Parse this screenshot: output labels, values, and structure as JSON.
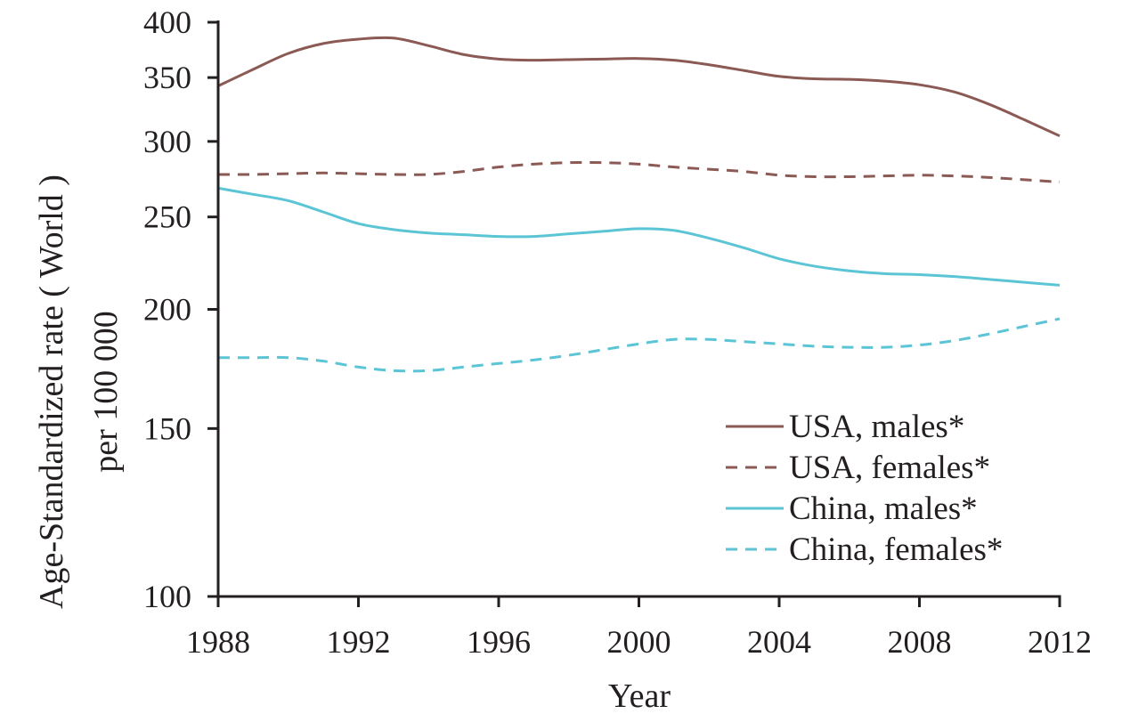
{
  "chart_data": {
    "type": "line",
    "xlabel": "Year",
    "ylabel": [
      "Age-Standardized rate ( World )",
      "per 100 000"
    ],
    "y_scale": "log",
    "xlim": [
      1988,
      2012
    ],
    "ylim": [
      100,
      400
    ],
    "x_ticks": [
      1988,
      1992,
      1996,
      2000,
      2004,
      2008,
      2012
    ],
    "y_ticks": [
      100,
      150,
      200,
      250,
      300,
      350,
      400
    ],
    "legend_placement": "bottom-right",
    "grid": false,
    "x": [
      1988,
      1989,
      1990,
      1991,
      1992,
      1993,
      1994,
      1995,
      1996,
      1997,
      1998,
      1999,
      2000,
      2001,
      2002,
      2003,
      2004,
      2005,
      2006,
      2007,
      2008,
      2009,
      2010,
      2011,
      2012
    ],
    "series": [
      {
        "name": "USA, males*",
        "color": "#8b5a55",
        "dash": "solid",
        "values": [
          343,
          357,
          371,
          380,
          384,
          385,
          378,
          370,
          366,
          365,
          365.5,
          366,
          366.5,
          365,
          361,
          356,
          351,
          349,
          348.5,
          347,
          344,
          338,
          328,
          316,
          304
        ]
      },
      {
        "name": "USA, females*",
        "color": "#8b5a55",
        "dash": "dashed",
        "values": [
          277,
          277,
          277.5,
          278,
          277.5,
          277,
          277,
          279,
          282,
          284,
          285,
          285,
          284,
          282,
          280.5,
          279,
          276.5,
          275.5,
          275.5,
          276,
          276.5,
          276,
          275,
          273.5,
          272
        ]
      },
      {
        "name": "China, males*",
        "color": "#5bc5d6",
        "dash": "solid",
        "values": [
          268,
          264,
          260,
          253,
          246,
          242.5,
          240.5,
          239.5,
          238.5,
          238.5,
          240,
          241.5,
          243,
          242,
          237.5,
          232,
          226,
          222,
          219.5,
          218,
          217.5,
          216.5,
          215,
          213.5,
          212
        ]
      },
      {
        "name": "China, females*",
        "color": "#5bc5d6",
        "dash": "dashed",
        "values": [
          178,
          178,
          178,
          176.5,
          174,
          172.5,
          172.5,
          174,
          175.5,
          177,
          179,
          181.5,
          184,
          186,
          186,
          185,
          184,
          183,
          182.5,
          182.5,
          183.5,
          185.5,
          188.5,
          192,
          195.5
        ]
      }
    ]
  }
}
